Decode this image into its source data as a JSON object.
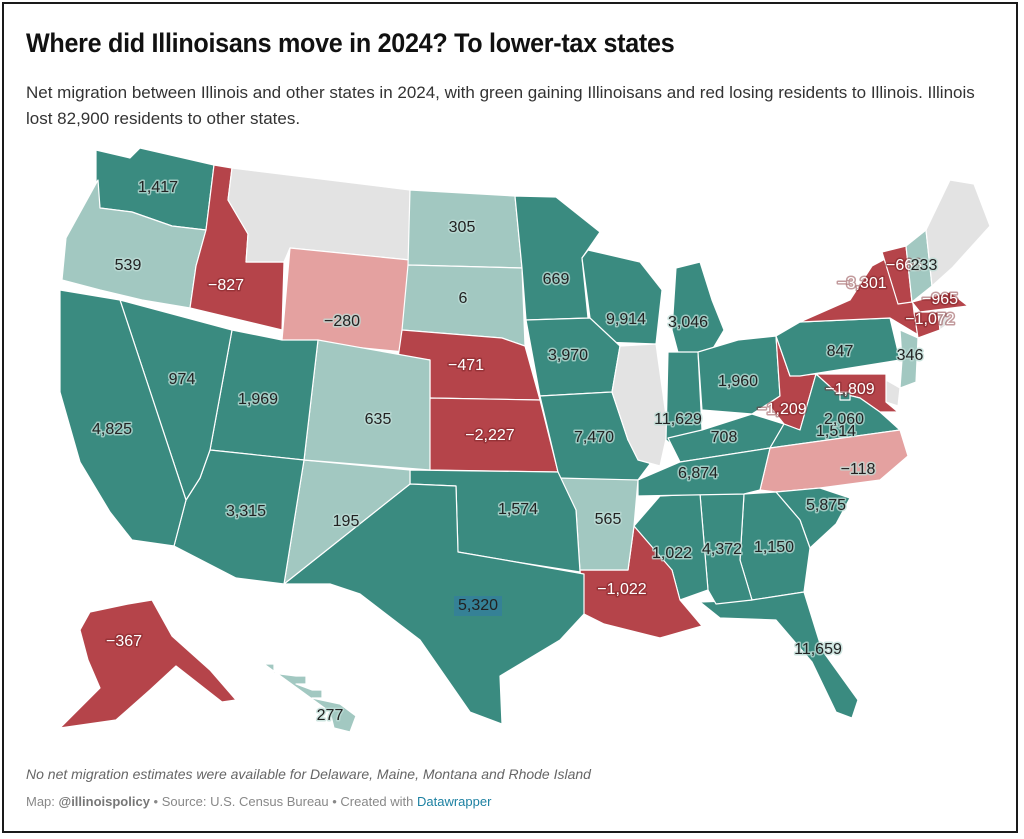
{
  "header": {
    "title": "Where did Illinoisans move in 2024? To lower-tax states",
    "subtitle": "Net migration between Illinois and other states in 2024, with green gaining Illinoisans and red losing residents to Illinois. Illinois lost 82,900 residents to other states."
  },
  "colors": {
    "strong_gain": "#3a8b80",
    "mild_gain": "#a2c8c1",
    "mild_loss": "#e4a1a0",
    "strong_loss": "#b5444a",
    "no_data": "#e3e3e3"
  },
  "chart_data": {
    "type": "choropleth",
    "title": "Where did Illinoisans move in 2024? To lower-tax states",
    "metric": "Net migration from Illinois, 2024",
    "states": [
      {
        "code": "WA",
        "value": 1417,
        "label": "1,417"
      },
      {
        "code": "OR",
        "value": 539,
        "label": "539"
      },
      {
        "code": "ID",
        "value": -827,
        "label": "−827"
      },
      {
        "code": "MT",
        "value": null,
        "label": ""
      },
      {
        "code": "WY",
        "value": -280,
        "label": "−280"
      },
      {
        "code": "ND",
        "value": 305,
        "label": "305"
      },
      {
        "code": "SD",
        "value": 6,
        "label": "6"
      },
      {
        "code": "NE",
        "value": -471,
        "label": "−471"
      },
      {
        "code": "KS",
        "value": -2227,
        "label": "−2,227"
      },
      {
        "code": "MN",
        "value": 669,
        "label": "669"
      },
      {
        "code": "WI",
        "value": 9914,
        "label": "9,914"
      },
      {
        "code": "MI",
        "value": 3046,
        "label": "3,046"
      },
      {
        "code": "IA",
        "value": 3970,
        "label": "3,970"
      },
      {
        "code": "MO",
        "value": 7470,
        "label": "7,470"
      },
      {
        "code": "IL",
        "value": null,
        "label": ""
      },
      {
        "code": "IN",
        "value": 11629,
        "label": "11,629"
      },
      {
        "code": "OH",
        "value": 1960,
        "label": "1,960"
      },
      {
        "code": "KY",
        "value": 708,
        "label": "708"
      },
      {
        "code": "WV",
        "value": -1209,
        "label": "−1,209"
      },
      {
        "code": "PA",
        "value": 847,
        "label": "847"
      },
      {
        "code": "NY",
        "value": -3301,
        "label": "−3,301"
      },
      {
        "code": "VT",
        "value": -666,
        "label": "−666"
      },
      {
        "code": "NH",
        "value": 233,
        "label": "233"
      },
      {
        "code": "ME",
        "value": null,
        "label": ""
      },
      {
        "code": "MA",
        "value": -965,
        "label": "−965"
      },
      {
        "code": "CT",
        "value": -1072,
        "label": "−1,072"
      },
      {
        "code": "RI",
        "value": null,
        "label": ""
      },
      {
        "code": "NJ",
        "value": 346,
        "label": "346"
      },
      {
        "code": "DE",
        "value": null,
        "label": ""
      },
      {
        "code": "MD",
        "value": -1809,
        "label": "−1,809"
      },
      {
        "code": "VA",
        "value": 1514,
        "label": "1,514"
      },
      {
        "code": "DC",
        "value": 2060,
        "label": "2,060"
      },
      {
        "code": "NC",
        "value": -118,
        "label": "−118"
      },
      {
        "code": "SC",
        "value": 5875,
        "label": "5,875"
      },
      {
        "code": "GA",
        "value": 1150,
        "label": "1,150"
      },
      {
        "code": "FL",
        "value": 11659,
        "label": "11,659"
      },
      {
        "code": "AL",
        "value": 4372,
        "label": "4,372"
      },
      {
        "code": "MS",
        "value": 1022,
        "label": "1,022"
      },
      {
        "code": "TN",
        "value": 6874,
        "label": "6,874"
      },
      {
        "code": "LA",
        "value": -1022,
        "label": "−1,022"
      },
      {
        "code": "AR",
        "value": 565,
        "label": "565"
      },
      {
        "code": "OK",
        "value": 1574,
        "label": "1,574"
      },
      {
        "code": "TX",
        "value": 5320,
        "label": "5,320"
      },
      {
        "code": "NM",
        "value": 195,
        "label": "195"
      },
      {
        "code": "CO",
        "value": 635,
        "label": "635"
      },
      {
        "code": "UT",
        "value": 1969,
        "label": "1,969"
      },
      {
        "code": "AZ",
        "value": 3315,
        "label": "3,315"
      },
      {
        "code": "NV",
        "value": 974,
        "label": "974"
      },
      {
        "code": "CA",
        "value": 4825,
        "label": "4,825"
      },
      {
        "code": "AK",
        "value": -367,
        "label": "−367"
      },
      {
        "code": "HI",
        "value": 277,
        "label": "277"
      }
    ],
    "bins": {
      "strong_gain_min": 669,
      "mild_gain_range": [
        0,
        635
      ],
      "mild_loss_range": [
        -280,
        -1
      ],
      "strong_loss_max": -367
    }
  },
  "footer": {
    "note": "No net migration estimates were available for Delaware, Maine, Montana and Rhode Island",
    "map_prefix": "Map: ",
    "map_credit": "@illinoispolicy",
    "source": " • Source: U.S. Census Bureau • Created with ",
    "tool": "Datawrapper"
  }
}
